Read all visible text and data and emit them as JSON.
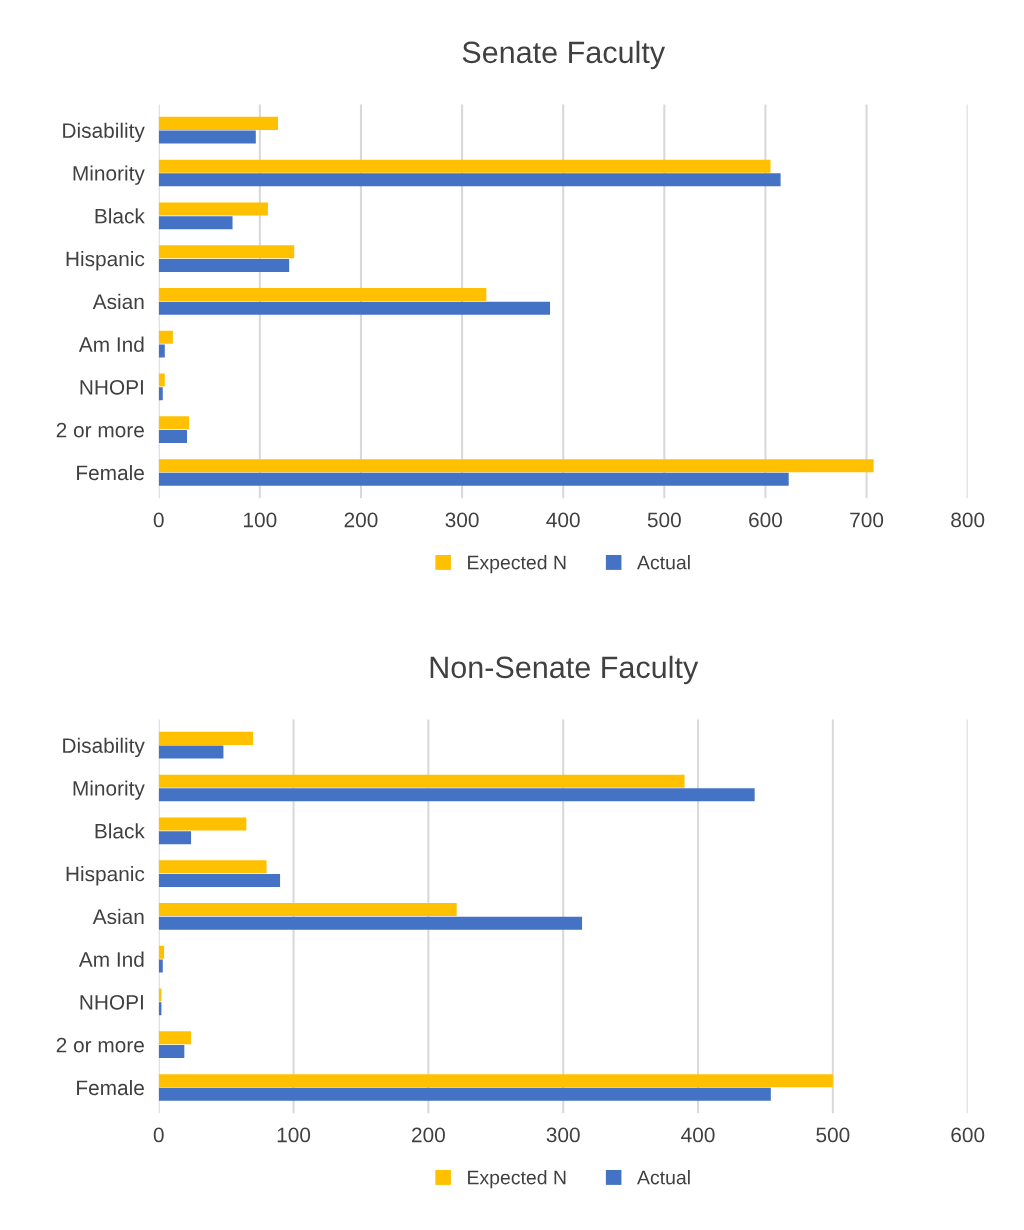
{
  "chart_data": [
    {
      "type": "bar",
      "orientation": "horizontal",
      "title": "Senate Faculty",
      "categories": [
        "Disability",
        "Minority",
        "Black",
        "Hispanic",
        "Asian",
        "Am Ind",
        "NHOPI",
        "2 or more",
        "Female"
      ],
      "series": [
        {
          "name": "Expected N",
          "color": "#ffc000",
          "values": [
            118,
            605,
            108,
            134,
            324,
            14,
            6,
            30,
            707
          ]
        },
        {
          "name": "Actual",
          "color": "#4472c4",
          "values": [
            96,
            615,
            73,
            129,
            387,
            6,
            4,
            28,
            623
          ]
        }
      ],
      "xlim": [
        0,
        800
      ],
      "xticks": [
        0,
        100,
        200,
        300,
        400,
        500,
        600,
        700,
        800
      ],
      "grid": "x",
      "legend": "bottom"
    },
    {
      "type": "bar",
      "orientation": "horizontal",
      "title": "Non-Senate Faculty",
      "categories": [
        "Disability",
        "Minority",
        "Black",
        "Hispanic",
        "Asian",
        "Am Ind",
        "NHOPI",
        "2 or more",
        "Female"
      ],
      "series": [
        {
          "name": "Expected N",
          "color": "#ffc000",
          "values": [
            70,
            390,
            65,
            80,
            221,
            4,
            2,
            24,
            500
          ]
        },
        {
          "name": "Actual",
          "color": "#4472c4",
          "values": [
            48,
            442,
            24,
            90,
            314,
            3,
            2,
            19,
            454
          ]
        }
      ],
      "xlim": [
        0,
        600
      ],
      "xticks": [
        0,
        100,
        200,
        300,
        400,
        500,
        600
      ],
      "grid": "x",
      "legend": "bottom"
    }
  ]
}
